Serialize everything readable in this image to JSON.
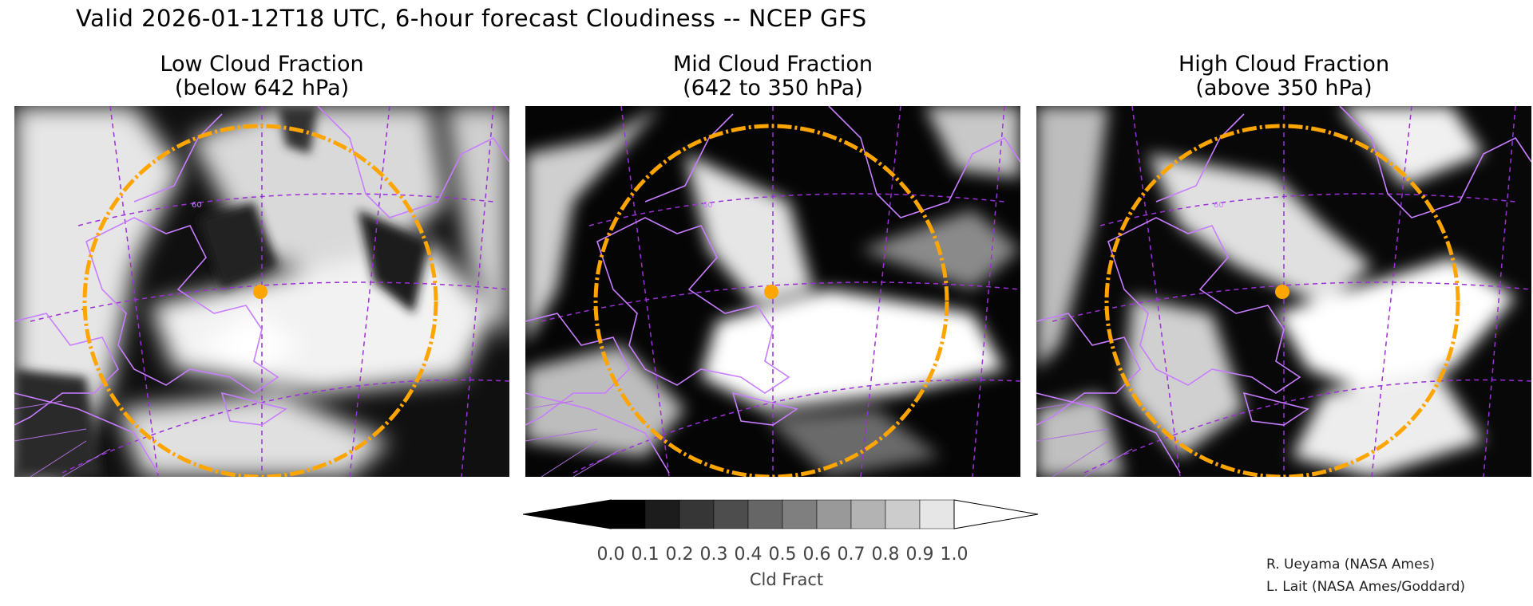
{
  "title": "Valid 2026-01-12T18 UTC, 6-hour forecast Cloudiness -- NCEP GFS",
  "panels": [
    {
      "line1": "Low Cloud Fraction",
      "line2": "(below 642 hPa)",
      "lat_label": "60"
    },
    {
      "line1": "Mid Cloud Fraction",
      "line2": "(642 to 350 hPa)",
      "lat_label": "60"
    },
    {
      "line1": "High Cloud Fraction",
      "line2": "(above 350 hPa)",
      "lat_label": "60"
    }
  ],
  "colorbar": {
    "title": "Cld Fract",
    "ticks": [
      "0.0",
      "0.1",
      "0.2",
      "0.3",
      "0.4",
      "0.5",
      "0.6",
      "0.7",
      "0.8",
      "0.9",
      "1.0"
    ],
    "colors": [
      "#000000",
      "#1c1c1c",
      "#363636",
      "#4d4d4d",
      "#666666",
      "#7f7f7f",
      "#999999",
      "#b3b3b3",
      "#cccccc",
      "#e6e6e6"
    ]
  },
  "credits": [
    "R. Ueyama (NASA Ames)",
    "L. Lait (NASA Ames/Goddard)"
  ],
  "colors": {
    "coast": "#c77dff",
    "grid": "#9b30d9",
    "range_ring": "#ffa500",
    "marker": "#ffa500"
  }
}
